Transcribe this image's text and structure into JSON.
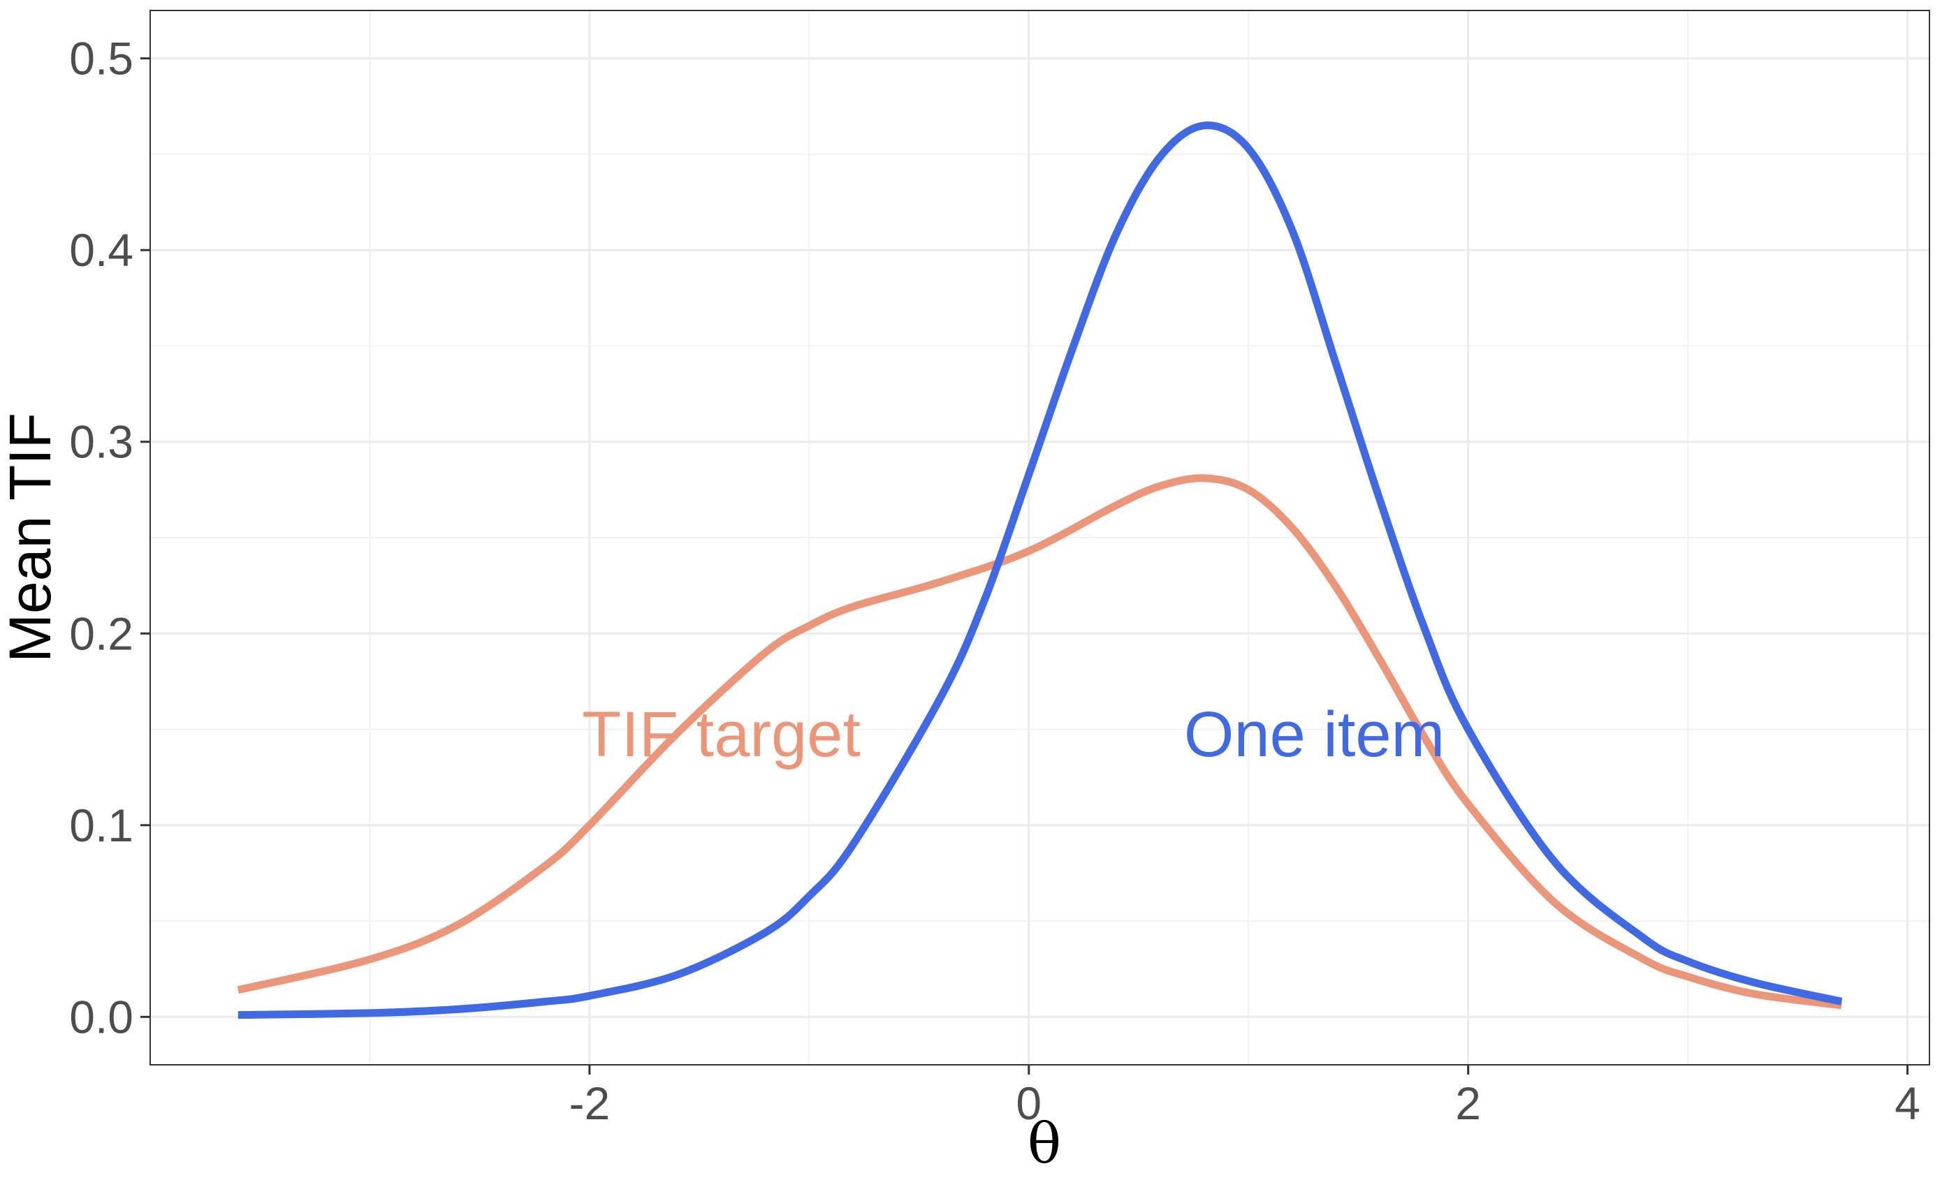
{
  "chart_data": {
    "type": "line",
    "title": "",
    "xlabel": "θ",
    "ylabel": "Mean TIF",
    "xlim": [
      -4,
      4.1
    ],
    "ylim": [
      -0.025,
      0.525
    ],
    "x_ticks": [
      -2,
      0,
      2,
      4
    ],
    "x_tick_labels": [
      "-2",
      "0",
      "2",
      "4"
    ],
    "y_ticks": [
      0.0,
      0.1,
      0.2,
      0.3,
      0.4,
      0.5
    ],
    "y_tick_labels": [
      "0.0",
      "0.1",
      "0.2",
      "0.3",
      "0.4",
      "0.5"
    ],
    "grid": true,
    "legend": "none",
    "series": [
      {
        "name": "TIF target",
        "color": "#E9967A",
        "x": [
          -3.6,
          -3.0,
          -2.6,
          -2.2,
          -2.0,
          -1.6,
          -1.2,
          -1.0,
          -0.8,
          -0.4,
          0.0,
          0.4,
          0.6,
          0.8,
          1.0,
          1.2,
          1.4,
          1.6,
          1.8,
          2.0,
          2.4,
          2.8,
          3.0,
          3.3,
          3.7
        ],
        "y": [
          0.014,
          0.03,
          0.048,
          0.079,
          0.1,
          0.148,
          0.19,
          0.204,
          0.214,
          0.227,
          0.243,
          0.267,
          0.277,
          0.281,
          0.275,
          0.255,
          0.224,
          0.186,
          0.146,
          0.111,
          0.059,
          0.03,
          0.021,
          0.012,
          0.006
        ]
      },
      {
        "name": "One item",
        "color": "#4169E1",
        "x": [
          -3.6,
          -3.0,
          -2.6,
          -2.2,
          -2.0,
          -1.6,
          -1.2,
          -1.0,
          -0.8,
          -0.4,
          -0.2,
          0.0,
          0.2,
          0.4,
          0.6,
          0.8,
          1.0,
          1.2,
          1.4,
          1.6,
          1.8,
          2.0,
          2.4,
          2.8,
          3.0,
          3.3,
          3.7
        ],
        "y": [
          0.001,
          0.002,
          0.004,
          0.008,
          0.011,
          0.022,
          0.044,
          0.063,
          0.09,
          0.167,
          0.218,
          0.283,
          0.349,
          0.409,
          0.449,
          0.465,
          0.453,
          0.41,
          0.34,
          0.269,
          0.203,
          0.15,
          0.08,
          0.041,
          0.029,
          0.018,
          0.008
        ]
      }
    ],
    "annotations": [
      {
        "text": "TIF target",
        "x": -1.4,
        "y": 0.148,
        "color": "#E9967A"
      },
      {
        "text": "One item",
        "x": 1.3,
        "y": 0.148,
        "color": "#4169E1"
      }
    ]
  }
}
